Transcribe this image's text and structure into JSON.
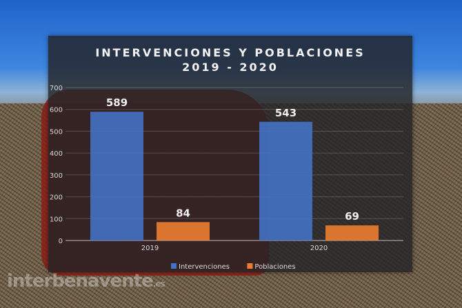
{
  "chart_data": {
    "type": "bar",
    "title": "INTERVENCIONES Y POBLACIONES",
    "subtitle": "2019 - 2020",
    "categories": [
      "2019",
      "2020"
    ],
    "series": [
      {
        "name": "Intervenciones",
        "values": [
          589,
          543
        ],
        "color": "#4472c4"
      },
      {
        "name": "Poblaciones",
        "values": [
          84,
          69
        ],
        "color": "#ed7d31"
      }
    ],
    "yticks": [
      0,
      100,
      200,
      300,
      400,
      500,
      600,
      700
    ],
    "ylim": [
      0,
      700
    ],
    "grid": true,
    "legend": "bottom",
    "data_labels": true
  },
  "watermark": {
    "text": "interbenavente",
    "suffix": ".es"
  }
}
